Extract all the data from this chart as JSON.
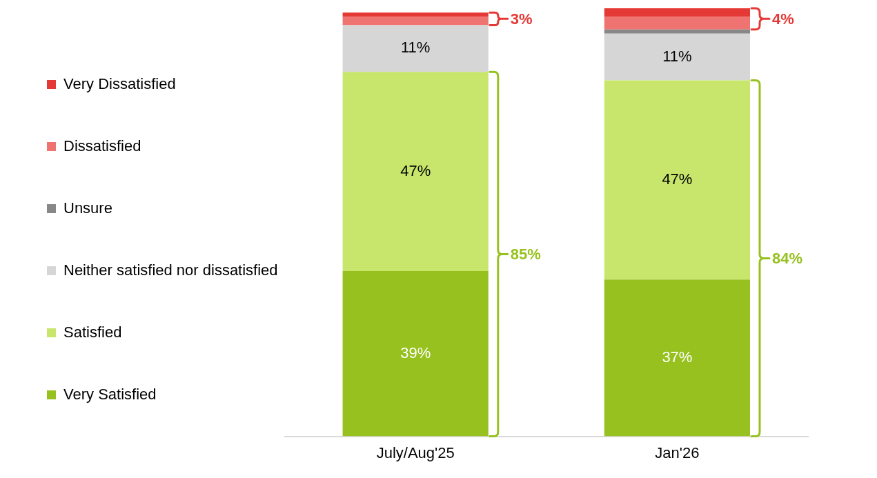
{
  "chart_data": {
    "type": "bar",
    "stacked": true,
    "legend": "left",
    "grid": false,
    "categories": [
      "July/Aug'25",
      "Jan'26"
    ],
    "series": [
      {
        "name": "Very Satisfied",
        "color": "#97c11f",
        "values": [
          39,
          37
        ],
        "value_labels": [
          "39%",
          "37%"
        ]
      },
      {
        "name": "Satisfied",
        "color": "#c8e66c",
        "values": [
          47,
          47
        ],
        "value_labels": [
          "47%",
          "47%"
        ]
      },
      {
        "name": "Neither satisfied nor dissatisfied",
        "color": "#d6d6d6",
        "values": [
          11,
          11
        ],
        "value_labels": [
          "11%",
          "11%"
        ]
      },
      {
        "name": "Unsure",
        "color": "#888888",
        "values": [
          0,
          1
        ],
        "value_labels": [
          null,
          null
        ]
      },
      {
        "name": "Dissatisfied",
        "color": "#ee7371",
        "values": [
          2,
          3
        ],
        "value_labels": [
          null,
          null
        ]
      },
      {
        "name": "Very Dissatisfied",
        "color": "#e53935",
        "values": [
          1,
          2
        ],
        "value_labels": [
          null,
          null
        ]
      }
    ],
    "annotations": [
      "85%",
      "3%",
      "84%",
      "4%"
    ]
  }
}
